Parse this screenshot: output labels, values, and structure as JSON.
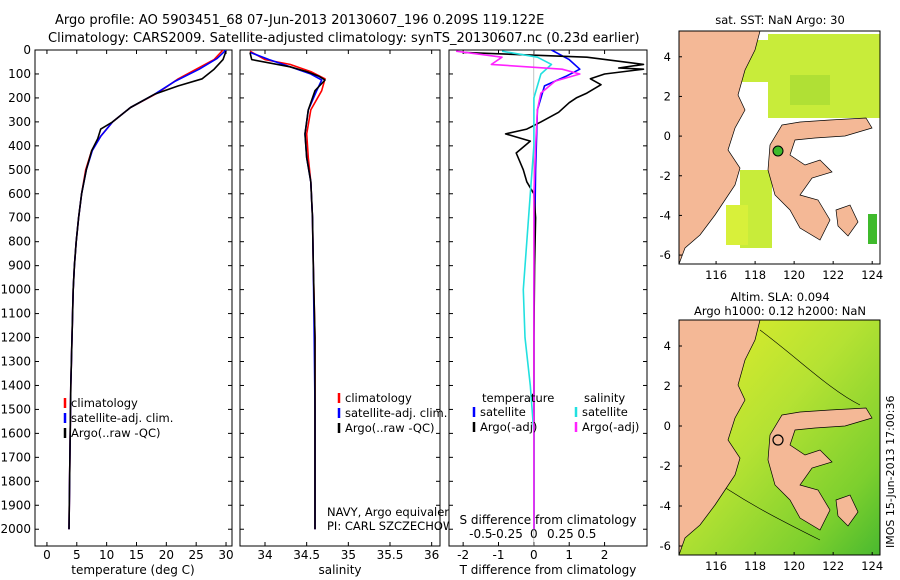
{
  "header": {
    "line1": "Argo profile: AO 5903451_68 07-Jun-2013 20130607_196 0.209S 119.122E",
    "line2": "Climatology: CARS2009. Satellite-adjusted climatology: synTS_20130607.nc (0.23d earlier)"
  },
  "side_label": "IMOS 15-Jun-2013 17:00:36",
  "colors": {
    "climatology": "#ff0000",
    "satellite": "#0000ff",
    "argo": "#000000",
    "sat_salinity": "#22e0e0",
    "argo_salinity": "#ff22ff",
    "land": "#f4b896",
    "sea_bg": "#ffffff"
  },
  "chart_data": [
    {
      "type": "line",
      "id": "temperature",
      "xlabel": "temperature (deg C)",
      "xlim": [
        -2,
        31
      ],
      "xticks": [
        0,
        5,
        10,
        15,
        20,
        25,
        30
      ],
      "ylim": [
        2070,
        0
      ],
      "yticks": [
        0,
        100,
        200,
        300,
        400,
        500,
        600,
        700,
        800,
        900,
        1000,
        1100,
        1200,
        1300,
        1400,
        1500,
        1600,
        1700,
        1800,
        1900,
        2000
      ],
      "legend": [
        "climatology",
        "satellite-adj. clim.",
        "Argo(..raw -QC)"
      ],
      "series": [
        {
          "name": "climatology",
          "points": [
            [
              29.5,
              0
            ],
            [
              28,
              40
            ],
            [
              25,
              80
            ],
            [
              22,
              120
            ],
            [
              18.5,
              180
            ],
            [
              14,
              240
            ],
            [
              11,
              300
            ],
            [
              9,
              360
            ],
            [
              7.5,
              420
            ],
            [
              6.5,
              500
            ],
            [
              5.8,
              600
            ],
            [
              5.3,
              700
            ],
            [
              4.9,
              800
            ],
            [
              4.6,
              900
            ],
            [
              4.4,
              1000
            ],
            [
              4.2,
              1200
            ],
            [
              4.0,
              1400
            ],
            [
              3.9,
              1600
            ],
            [
              3.8,
              1800
            ],
            [
              3.7,
              2000
            ]
          ]
        },
        {
          "name": "satellite",
          "points": [
            [
              30,
              0
            ],
            [
              28.5,
              35
            ],
            [
              25.5,
              80
            ],
            [
              21.5,
              130
            ],
            [
              18,
              185
            ],
            [
              14,
              240
            ],
            [
              11,
              300
            ],
            [
              9,
              360
            ],
            [
              7.6,
              420
            ],
            [
              6.6,
              500
            ],
            [
              5.8,
              600
            ],
            [
              5.3,
              700
            ],
            [
              4.9,
              800
            ],
            [
              4.6,
              900
            ],
            [
              4.4,
              1000
            ],
            [
              4.2,
              1200
            ],
            [
              4.0,
              1400
            ],
            [
              3.9,
              1600
            ],
            [
              3.8,
              1800
            ],
            [
              3.7,
              2000
            ]
          ]
        },
        {
          "name": "argo",
          "points": [
            [
              30,
              5
            ],
            [
              29.5,
              40
            ],
            [
              28,
              80
            ],
            [
              26,
              120
            ],
            [
              22,
              150
            ],
            [
              18,
              185
            ],
            [
              14,
              240
            ],
            [
              11,
              300
            ],
            [
              9,
              330
            ],
            [
              8.5,
              370
            ],
            [
              7.5,
              420
            ],
            [
              6.6,
              500
            ],
            [
              5.8,
              600
            ],
            [
              5.3,
              700
            ],
            [
              4.9,
              800
            ],
            [
              4.6,
              900
            ],
            [
              4.4,
              1000
            ],
            [
              4.2,
              1200
            ],
            [
              4.0,
              1400
            ],
            [
              3.9,
              1600
            ],
            [
              3.8,
              1800
            ],
            [
              3.7,
              2000
            ]
          ]
        }
      ]
    },
    {
      "type": "line",
      "id": "salinity",
      "xlabel": "salinity",
      "xlim": [
        33.7,
        36.1
      ],
      "xticks": [
        34,
        34.5,
        35,
        35.5,
        36
      ],
      "xtick_labels": [
        "34",
        "34.5",
        "35",
        "35.5",
        "36"
      ],
      "ylim": [
        2070,
        0
      ],
      "legend": [
        "climatology",
        "satellite-adj. clim.",
        "Argo(..raw -QC)"
      ],
      "annotation": [
        "NAVY, Argo equivalent",
        "PI: CARL SZCZECHOWSKI"
      ],
      "series": [
        {
          "name": "climatology",
          "points": [
            [
              33.82,
              5
            ],
            [
              34.0,
              40
            ],
            [
              34.3,
              60
            ],
            [
              34.55,
              90
            ],
            [
              34.72,
              120
            ],
            [
              34.68,
              170
            ],
            [
              34.55,
              250
            ],
            [
              34.5,
              350
            ],
            [
              34.52,
              450
            ],
            [
              34.55,
              550
            ],
            [
              34.57,
              700
            ],
            [
              34.58,
              900
            ],
            [
              34.6,
              1200
            ],
            [
              34.6,
              1500
            ],
            [
              34.6,
              2000
            ]
          ]
        },
        {
          "name": "satellite",
          "points": [
            [
              33.82,
              10
            ],
            [
              34.05,
              40
            ],
            [
              34.3,
              70
            ],
            [
              34.55,
              100
            ],
            [
              34.68,
              125
            ],
            [
              34.62,
              170
            ],
            [
              34.52,
              250
            ],
            [
              34.48,
              350
            ],
            [
              34.5,
              450
            ],
            [
              34.55,
              550
            ],
            [
              34.57,
              700
            ],
            [
              34.58,
              900
            ],
            [
              34.59,
              1200
            ],
            [
              34.6,
              1500
            ],
            [
              34.6,
              2000
            ]
          ]
        },
        {
          "name": "argo",
          "points": [
            [
              33.82,
              10
            ],
            [
              33.84,
              40
            ],
            [
              34.3,
              70
            ],
            [
              34.5,
              90
            ],
            [
              34.65,
              110
            ],
            [
              34.72,
              125
            ],
            [
              34.6,
              170
            ],
            [
              34.52,
              250
            ],
            [
              34.48,
              350
            ],
            [
              34.5,
              450
            ],
            [
              34.55,
              550
            ],
            [
              34.57,
              700
            ],
            [
              34.58,
              900
            ],
            [
              34.6,
              1200
            ],
            [
              34.6,
              1500
            ],
            [
              34.6,
              2000
            ]
          ]
        }
      ]
    },
    {
      "type": "line",
      "id": "difference",
      "xlabel": "T difference from climatology",
      "xlabel_top": "S difference from climatology",
      "xlim": [
        -2.4,
        3.2
      ],
      "xticks": [
        -2,
        -1,
        0,
        1,
        2
      ],
      "xtick_labels": [
        "-2",
        "-1",
        "0",
        "1",
        "2"
      ],
      "sticks": [
        -1.5,
        -0.75,
        0,
        0.75,
        1.5
      ],
      "stick_labels": [
        "-0.5",
        "-0.25",
        "0",
        "0.25",
        "0.5"
      ],
      "ylim": [
        2070,
        0
      ],
      "legend_titles": [
        "temperature",
        "salinity"
      ],
      "legend": [
        "satellite",
        "Argo(-adj)",
        "satellite",
        "Argo(-adj)"
      ],
      "series": [
        {
          "name": "T satellite",
          "points": [
            [
              0.5,
              0
            ],
            [
              1,
              40
            ],
            [
              1.3,
              80
            ],
            [
              0.9,
              110
            ],
            [
              0.3,
              150
            ],
            [
              0.1,
              250
            ],
            [
              0.05,
              500
            ],
            [
              0,
              1000
            ],
            [
              0,
              1500
            ],
            [
              0,
              2000
            ]
          ]
        },
        {
          "name": "T Argo(-adj)",
          "points": [
            [
              -2.0,
              10
            ],
            [
              1.5,
              30
            ],
            [
              3.1,
              60
            ],
            [
              2.4,
              75
            ],
            [
              3.1,
              80
            ],
            [
              2.0,
              100
            ],
            [
              1.6,
              120
            ],
            [
              1.9,
              145
            ],
            [
              1.5,
              180
            ],
            [
              1.2,
              200
            ],
            [
              1.0,
              220
            ],
            [
              0.7,
              260
            ],
            [
              0.2,
              300
            ],
            [
              -0.2,
              330
            ],
            [
              -0.8,
              350
            ],
            [
              -0.1,
              380
            ],
            [
              -0.5,
              430
            ],
            [
              -0.3,
              500
            ],
            [
              -0.2,
              550
            ],
            [
              0,
              600
            ],
            [
              0.05,
              700
            ],
            [
              0.02,
              900
            ],
            [
              0,
              1200
            ],
            [
              0,
              2000
            ]
          ]
        },
        {
          "name": "S satellite",
          "points": [
            [
              -0.9,
              5
            ],
            [
              0.1,
              30
            ],
            [
              0.5,
              60
            ],
            [
              0.2,
              100
            ],
            [
              0,
              200
            ],
            [
              0,
              400
            ],
            [
              -0.1,
              600
            ],
            [
              -0.2,
              800
            ],
            [
              -0.3,
              1000
            ],
            [
              -0.25,
              1200
            ],
            [
              -0.1,
              1400
            ],
            [
              0,
              1600
            ],
            [
              0,
              2000
            ]
          ]
        },
        {
          "name": "S Argo(-adj)",
          "points": [
            [
              -2.2,
              5
            ],
            [
              -0.9,
              30
            ],
            [
              -1.2,
              60
            ],
            [
              0.8,
              80
            ],
            [
              1.3,
              100
            ],
            [
              0.6,
              130
            ],
            [
              0.2,
              180
            ],
            [
              0.1,
              250
            ],
            [
              0.05,
              400
            ],
            [
              0,
              600
            ],
            [
              0,
              2000
            ]
          ]
        }
      ]
    }
  ],
  "maps": [
    {
      "title": "sat. SST: NaN Argo: 30",
      "lat_ticks": [
        "4",
        "2",
        "0",
        "-2",
        "-4",
        "-6"
      ],
      "lon_ticks": [
        "116",
        "118",
        "120",
        "122",
        "124"
      ]
    },
    {
      "title_line1": "Altim. SLA: 0.094",
      "title_line2": "Argo h1000: 0.12 h2000: NaN",
      "lat_ticks": [
        "4",
        "2",
        "0",
        "-2",
        "-4",
        "-6"
      ],
      "lon_ticks": [
        "116",
        "118",
        "120",
        "122",
        "124"
      ]
    }
  ]
}
